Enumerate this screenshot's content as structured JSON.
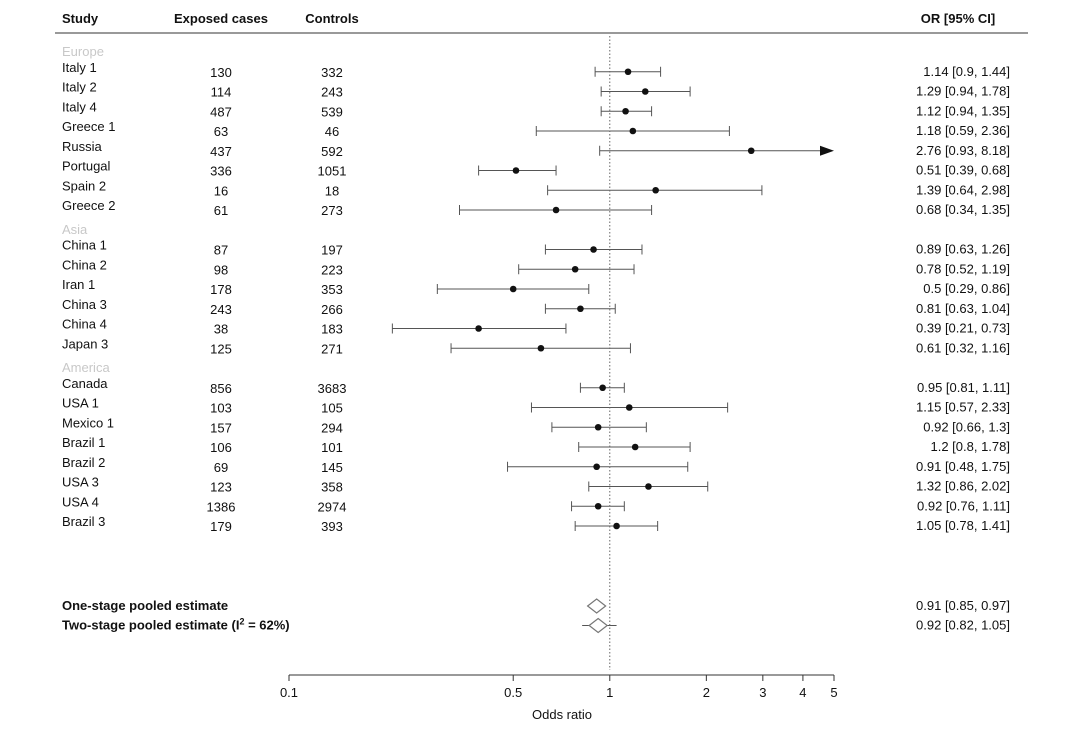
{
  "headers": {
    "study": "Study",
    "exposed": "Exposed cases",
    "controls": "Controls",
    "or": "OR [95% CI]"
  },
  "chart_data": {
    "type": "forest",
    "xlabel": "Odds ratio",
    "x_scale": "log",
    "xlim": [
      0.1,
      5
    ],
    "reference_line": 1,
    "x_ticks": [
      0.1,
      0.5,
      1,
      2,
      3,
      4,
      5
    ],
    "x_tick_labels": [
      "0.1",
      "0.5",
      "1",
      "2",
      "3",
      "4",
      "5"
    ],
    "groups": [
      {
        "name": "Europe",
        "studies": [
          {
            "label": "Italy 1",
            "exposed": "130",
            "controls": "332",
            "or": 1.14,
            "lo": 0.9,
            "hi": 1.44,
            "text": "1.14 [0.9, 1.44]"
          },
          {
            "label": "Italy 2",
            "exposed": "114",
            "controls": "243",
            "or": 1.29,
            "lo": 0.94,
            "hi": 1.78,
            "text": "1.29 [0.94, 1.78]"
          },
          {
            "label": "Italy 4",
            "exposed": "487",
            "controls": "539",
            "or": 1.12,
            "lo": 0.94,
            "hi": 1.35,
            "text": "1.12 [0.94, 1.35]"
          },
          {
            "label": "Greece 1",
            "exposed": "63",
            "controls": "46",
            "or": 1.18,
            "lo": 0.59,
            "hi": 2.36,
            "text": "1.18 [0.59, 2.36]"
          },
          {
            "label": "Russia",
            "exposed": "437",
            "controls": "592",
            "or": 2.76,
            "lo": 0.93,
            "hi": 8.18,
            "text": "2.76 [0.93, 8.18]"
          },
          {
            "label": "Portugal",
            "exposed": "336",
            "controls": "1051",
            "or": 0.51,
            "lo": 0.39,
            "hi": 0.68,
            "text": "0.51 [0.39, 0.68]"
          },
          {
            "label": "Spain 2",
            "exposed": "16",
            "controls": "18",
            "or": 1.39,
            "lo": 0.64,
            "hi": 2.98,
            "text": "1.39 [0.64, 2.98]"
          },
          {
            "label": "Greece 2",
            "exposed": "61",
            "controls": "273",
            "or": 0.68,
            "lo": 0.34,
            "hi": 1.35,
            "text": "0.68 [0.34, 1.35]"
          }
        ]
      },
      {
        "name": "Asia",
        "studies": [
          {
            "label": "China 1",
            "exposed": "87",
            "controls": "197",
            "or": 0.89,
            "lo": 0.63,
            "hi": 1.26,
            "text": "0.89 [0.63, 1.26]"
          },
          {
            "label": "China 2",
            "exposed": "98",
            "controls": "223",
            "or": 0.78,
            "lo": 0.52,
            "hi": 1.19,
            "text": "0.78 [0.52, 1.19]"
          },
          {
            "label": "Iran 1",
            "exposed": "178",
            "controls": "353",
            "or": 0.5,
            "lo": 0.29,
            "hi": 0.86,
            "text": "0.5 [0.29, 0.86]"
          },
          {
            "label": "China 3",
            "exposed": "243",
            "controls": "266",
            "or": 0.81,
            "lo": 0.63,
            "hi": 1.04,
            "text": "0.81 [0.63, 1.04]"
          },
          {
            "label": "China 4",
            "exposed": "38",
            "controls": "183",
            "or": 0.39,
            "lo": 0.21,
            "hi": 0.73,
            "text": "0.39 [0.21, 0.73]"
          },
          {
            "label": "Japan 3",
            "exposed": "125",
            "controls": "271",
            "or": 0.61,
            "lo": 0.32,
            "hi": 1.16,
            "text": "0.61 [0.32, 1.16]"
          }
        ]
      },
      {
        "name": "America",
        "studies": [
          {
            "label": "Canada",
            "exposed": "856",
            "controls": "3683",
            "or": 0.95,
            "lo": 0.81,
            "hi": 1.11,
            "text": "0.95 [0.81, 1.11]"
          },
          {
            "label": "USA 1",
            "exposed": "103",
            "controls": "105",
            "or": 1.15,
            "lo": 0.57,
            "hi": 2.33,
            "text": "1.15 [0.57, 2.33]"
          },
          {
            "label": "Mexico 1",
            "exposed": "157",
            "controls": "294",
            "or": 0.92,
            "lo": 0.66,
            "hi": 1.3,
            "text": "0.92 [0.66, 1.3]"
          },
          {
            "label": "Brazil 1",
            "exposed": "106",
            "controls": "101",
            "or": 1.2,
            "lo": 0.8,
            "hi": 1.78,
            "text": "1.2 [0.8, 1.78]"
          },
          {
            "label": "Brazil 2",
            "exposed": "69",
            "controls": "145",
            "or": 0.91,
            "lo": 0.48,
            "hi": 1.75,
            "text": "0.91 [0.48, 1.75]"
          },
          {
            "label": "USA 3",
            "exposed": "123",
            "controls": "358",
            "or": 1.32,
            "lo": 0.86,
            "hi": 2.02,
            "text": "1.32 [0.86, 2.02]"
          },
          {
            "label": "USA 4",
            "exposed": "1386",
            "controls": "2974",
            "or": 0.92,
            "lo": 0.76,
            "hi": 1.11,
            "text": "0.92 [0.76, 1.11]"
          },
          {
            "label": "Brazil 3",
            "exposed": "179",
            "controls": "393",
            "or": 1.05,
            "lo": 0.78,
            "hi": 1.41,
            "text": "1.05 [0.78, 1.41]"
          }
        ]
      }
    ],
    "pooled": [
      {
        "label": "One-stage pooled estimate",
        "or": 0.91,
        "lo": 0.85,
        "hi": 0.97,
        "text": "0.91 [0.85, 0.97]"
      },
      {
        "label": "Two-stage pooled estimate (I",
        "label_sup": "2",
        "label_suffix": " = 62%)",
        "or": 0.92,
        "lo": 0.82,
        "hi": 1.05,
        "text": "0.92 [0.82, 1.05]"
      }
    ]
  }
}
